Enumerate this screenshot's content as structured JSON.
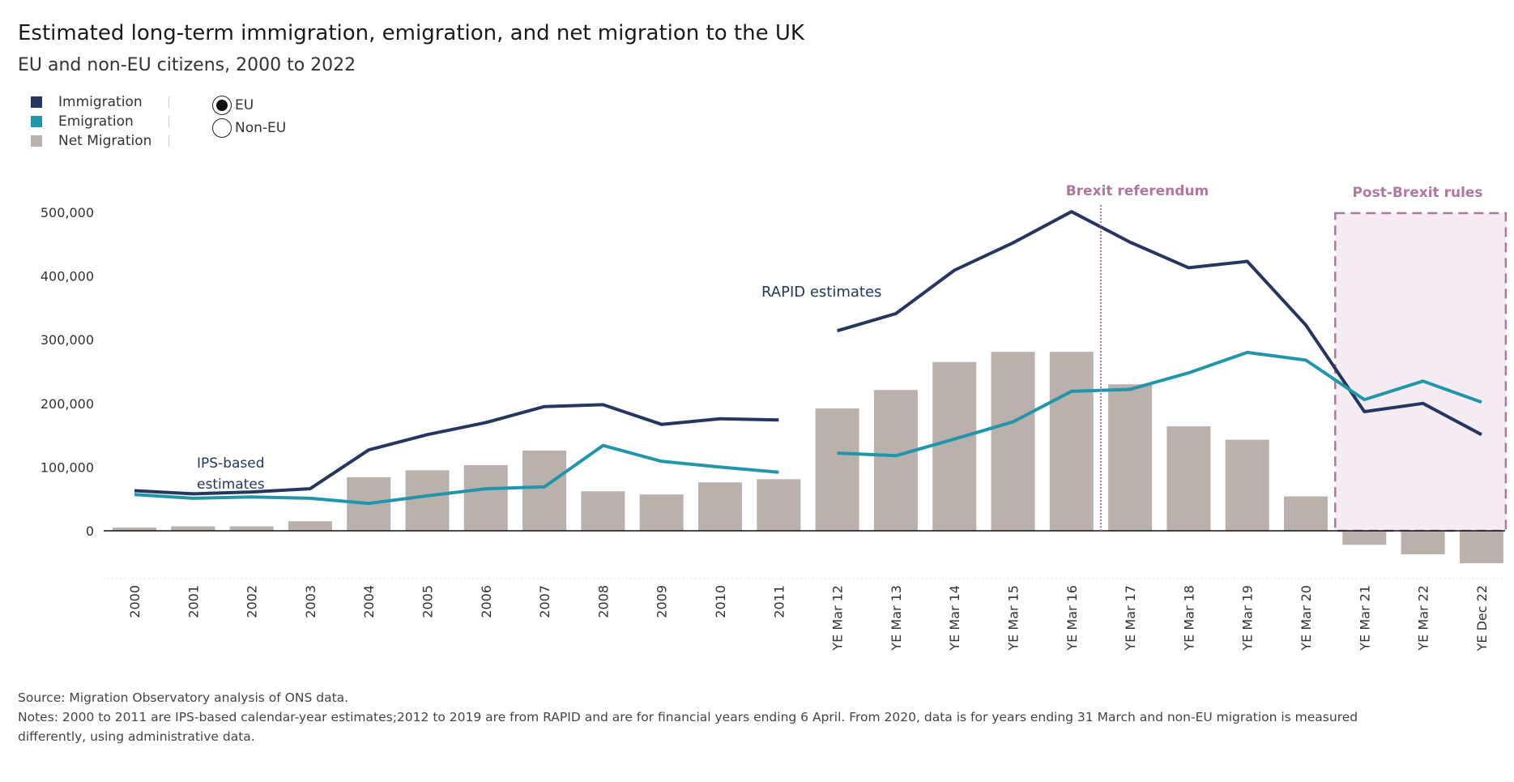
{
  "header": {
    "title": "Estimated long-term immigration, emigration, and net migration to the UK",
    "subtitle": "EU and non-EU citizens, 2000 to 2022"
  },
  "legend": {
    "items": [
      {
        "label": "Immigration",
        "color": "#253761"
      },
      {
        "label": "Emigration",
        "color": "#2196ab"
      },
      {
        "label": "Net Migration",
        "color": "#bab0ac"
      }
    ]
  },
  "citizenship_filter": {
    "options": [
      {
        "label": "EU",
        "selected": true
      },
      {
        "label": "Non-EU",
        "selected": false
      }
    ]
  },
  "chart_data": {
    "type": "bar",
    "categories": [
      "2000",
      "2001",
      "2002",
      "2003",
      "2004",
      "2005",
      "2006",
      "2007",
      "2008",
      "2009",
      "2010",
      "2011",
      "YE Mar 12",
      "YE Mar 13",
      "YE Mar 14",
      "YE Mar 15",
      "YE Mar 16",
      "YE Mar 17",
      "YE Mar 18",
      "YE Mar 19",
      "YE Mar 20",
      "YE Mar 21",
      "YE Mar 22",
      "YE Dec 22"
    ],
    "ylim": [
      -50000,
      500000
    ],
    "yticks": [
      0,
      100000,
      200000,
      300000,
      400000,
      500000
    ],
    "ytick_labels": [
      "0",
      "100,000",
      "200,000",
      "300,000",
      "400,000",
      "500,000"
    ],
    "series": [
      {
        "name": "Net Migration",
        "kind": "bar",
        "color": "#bab0ac",
        "values": [
          5000,
          7000,
          7000,
          15000,
          84000,
          95000,
          103000,
          126000,
          62000,
          57000,
          76000,
          81000,
          192000,
          221000,
          265000,
          281000,
          281000,
          230000,
          164000,
          143000,
          54000,
          -22000,
          -37000,
          -51000
        ]
      },
      {
        "name": "Immigration",
        "kind": "line",
        "color": "#253761",
        "segments": [
          {
            "start": 0,
            "values": [
              63000,
              58000,
              61000,
              66000,
              127000,
              151000,
              170000,
              195000,
              198000,
              167000,
              176000,
              174000
            ]
          },
          {
            "start": 12,
            "values": [
              314000,
              341000,
              409000,
              452000,
              501000,
              453000,
              413000,
              423000,
              323000,
              187000,
              200000,
              151000
            ]
          }
        ]
      },
      {
        "name": "Emigration",
        "kind": "line",
        "color": "#2196ab",
        "segments": [
          {
            "start": 0,
            "values": [
              57000,
              51000,
              53000,
              51000,
              43000,
              55000,
              66000,
              69000,
              134000,
              109000,
              100000,
              92000
            ]
          },
          {
            "start": 12,
            "values": [
              122000,
              118000,
              144000,
              171000,
              219000,
              222000,
              248000,
              280000,
              268000,
              206000,
              235000,
              202000
            ]
          }
        ]
      }
    ],
    "annotations": [
      {
        "text": "IPS-based",
        "color": "#253761"
      },
      {
        "text": "estimates",
        "color": "#253761"
      },
      {
        "text": "RAPID estimates",
        "color": "#253761"
      },
      {
        "text": "Brexit referendum",
        "color": "#b0789f"
      },
      {
        "text": "Post-Brexit rules",
        "color": "#b0789f"
      }
    ]
  },
  "footer": {
    "source": "Source: Migration Observatory analysis of ONS data.",
    "notes_line1": "Notes: 2000 to 2011 are IPS-based calendar-year estimates;2012 to 2019 are from RAPID and are for financial years ending 6 April. From 2020, data is for years ending 31 March and non-EU migration is measured",
    "notes_line2": "differently, using administrative data."
  }
}
